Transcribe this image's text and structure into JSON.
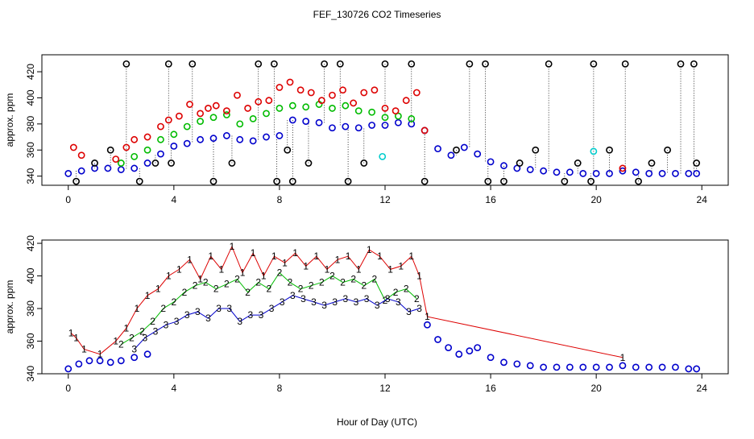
{
  "title": "FEF_130726  CO2 Timeseries",
  "xlabel": "Hour of Day (UTC)",
  "colors": {
    "black": "#000000",
    "red": "#dd0000",
    "green": "#00bb00",
    "blue": "#0000cc",
    "cyan": "#00cccc"
  },
  "chart_data": [
    {
      "type": "scatter",
      "ylabel": "approx. ppm",
      "xlim": [
        -1,
        25
      ],
      "ylim": [
        333,
        433
      ],
      "x_ticks": [
        0,
        4,
        8,
        12,
        16,
        20,
        24
      ],
      "y_ticks": [
        340,
        360,
        380,
        400,
        420
      ],
      "grid": false,
      "series": [
        {
          "color": "blue",
          "x": [
            0.0,
            0.5,
            1.0,
            1.5,
            2.0,
            2.5,
            3.0,
            3.5,
            4.0,
            4.5,
            5.0,
            5.5,
            6.0,
            6.5,
            7.0,
            7.5,
            8.0,
            8.5,
            9.0,
            9.5,
            10.0,
            10.5,
            11.0,
            11.5,
            12.0,
            12.5,
            13.0,
            13.5,
            14.0,
            14.5,
            15.0,
            15.5,
            16.0,
            16.5,
            17.0,
            17.5,
            18.0,
            18.5,
            19.0,
            19.5,
            20.0,
            20.5,
            21.0,
            21.5,
            22.0,
            22.5,
            23.0,
            23.5,
            23.8
          ],
          "y": [
            342,
            344,
            346,
            346,
            345,
            346,
            350,
            357,
            363,
            365,
            368,
            369,
            371,
            368,
            367,
            370,
            371,
            383,
            382,
            381,
            377,
            378,
            377,
            379,
            379,
            381,
            380,
            375,
            361,
            356,
            362,
            357,
            351,
            348,
            346,
            345,
            344,
            343,
            343,
            342,
            342,
            342,
            344,
            343,
            342,
            342,
            342,
            342,
            342
          ]
        },
        {
          "color": "green",
          "x": [
            2.0,
            2.5,
            3.0,
            3.5,
            4.0,
            4.5,
            5.0,
            5.5,
            6.0,
            6.5,
            7.0,
            7.5,
            8.0,
            8.5,
            9.0,
            9.5,
            10.0,
            10.5,
            11.0,
            11.5,
            12.0,
            12.5,
            13.0
          ],
          "y": [
            350,
            355,
            360,
            368,
            372,
            378,
            382,
            385,
            387,
            380,
            384,
            388,
            392,
            394,
            393,
            395,
            392,
            394,
            390,
            389,
            385,
            386,
            384
          ]
        },
        {
          "color": "red",
          "x": [
            0.2,
            0.5,
            1.8,
            2.2,
            2.5,
            3.0,
            3.5,
            3.8,
            4.2,
            4.6,
            5.0,
            5.3,
            5.6,
            6.0,
            6.4,
            6.8,
            7.2,
            7.6,
            8.0,
            8.4,
            8.8,
            9.2,
            9.6,
            10.0,
            10.4,
            10.8,
            11.2,
            11.6,
            12.0,
            12.4,
            12.8,
            13.2,
            13.5,
            21.0
          ],
          "y": [
            362,
            356,
            353,
            362,
            368,
            370,
            378,
            383,
            386,
            395,
            388,
            392,
            394,
            390,
            402,
            392,
            397,
            398,
            408,
            412,
            406,
            404,
            398,
            402,
            406,
            396,
            404,
            406,
            392,
            390,
            398,
            404,
            375,
            346
          ]
        },
        {
          "color": "cyan",
          "x": [
            11.9,
            19.9
          ],
          "y": [
            355,
            359
          ]
        },
        {
          "color": "black",
          "x": [
            0.3,
            1.0,
            1.6,
            2.2,
            2.7,
            3.3,
            3.8,
            3.9,
            4.7,
            5.5,
            6.2,
            7.2,
            7.8,
            7.9,
            8.3,
            8.5,
            9.1,
            9.7,
            10.3,
            10.6,
            11.2,
            12.0,
            13.0,
            13.5,
            14.7,
            15.2,
            15.8,
            15.9,
            16.5,
            17.1,
            17.7,
            18.2,
            18.8,
            19.3,
            19.8,
            19.9,
            20.5,
            21.1,
            21.6,
            22.1,
            22.7,
            23.2,
            23.7,
            23.8
          ],
          "y": [
            336,
            350,
            360,
            426,
            336,
            350,
            426,
            350,
            426,
            336,
            350,
            426,
            426,
            336,
            360,
            336,
            350,
            426,
            426,
            336,
            350,
            426,
            426,
            336,
            360,
            426,
            426,
            336,
            336,
            350,
            360,
            426,
            336,
            350,
            336,
            426,
            360,
            426,
            336,
            350,
            360,
            426,
            426,
            350
          ]
        }
      ]
    },
    {
      "type": "scatter",
      "ylabel": "approx. ppm",
      "xlim": [
        -1,
        25
      ],
      "ylim": [
        340,
        422
      ],
      "x_ticks": [
        0,
        4,
        8,
        12,
        16,
        20,
        24
      ],
      "y_ticks": [
        340,
        360,
        380,
        400,
        420
      ],
      "grid": false,
      "series": [
        {
          "name": "1",
          "color": "red",
          "x": [
            0.1,
            0.3,
            0.6,
            1.2,
            1.8,
            2.2,
            2.6,
            3.0,
            3.4,
            3.8,
            4.2,
            4.6,
            5.0,
            5.4,
            5.8,
            6.2,
            6.6,
            7.0,
            7.4,
            7.8,
            8.2,
            8.6,
            9.0,
            9.4,
            9.8,
            10.2,
            10.6,
            11.0,
            11.4,
            11.8,
            12.2,
            12.6,
            13.0,
            13.3,
            13.6,
            21.0
          ],
          "y": [
            365,
            362,
            355,
            352,
            360,
            368,
            380,
            388,
            392,
            400,
            404,
            410,
            398,
            412,
            404,
            418,
            402,
            414,
            400,
            412,
            408,
            414,
            406,
            412,
            404,
            410,
            412,
            404,
            416,
            412,
            404,
            406,
            412,
            400,
            375,
            350
          ]
        },
        {
          "name": "2",
          "color": "green",
          "x": [
            2.0,
            2.4,
            2.8,
            3.2,
            3.6,
            4.0,
            4.4,
            4.8,
            5.2,
            5.6,
            6.0,
            6.4,
            6.8,
            7.2,
            7.6,
            8.0,
            8.4,
            8.8,
            9.2,
            9.6,
            10.0,
            10.4,
            10.8,
            11.2,
            11.6,
            12.0,
            12.4,
            12.8,
            13.2
          ],
          "y": [
            358,
            362,
            366,
            372,
            380,
            384,
            390,
            394,
            396,
            392,
            395,
            398,
            390,
            396,
            392,
            402,
            396,
            392,
            394,
            396,
            400,
            396,
            398,
            394,
            398,
            385,
            390,
            392,
            386
          ]
        },
        {
          "name": "3",
          "color": "blue",
          "x": [
            2.5,
            2.9,
            3.3,
            3.7,
            4.1,
            4.5,
            4.9,
            5.3,
            5.7,
            6.1,
            6.5,
            6.9,
            7.3,
            7.7,
            8.1,
            8.5,
            8.9,
            9.3,
            9.7,
            10.1,
            10.5,
            10.9,
            11.3,
            11.7,
            12.1,
            12.5,
            12.9,
            13.3
          ],
          "y": [
            355,
            362,
            366,
            370,
            372,
            376,
            378,
            374,
            380,
            380,
            372,
            376,
            376,
            380,
            384,
            388,
            386,
            384,
            382,
            384,
            386,
            384,
            386,
            382,
            386,
            384,
            378,
            380
          ]
        },
        {
          "name": "o",
          "color": "blue",
          "x": [
            0.0,
            0.4,
            0.8,
            1.2,
            1.6,
            2.0,
            2.5,
            3.0,
            13.6,
            14.0,
            14.4,
            14.8,
            15.2,
            15.5,
            16.0,
            16.5,
            17.0,
            17.5,
            18.0,
            18.5,
            19.0,
            19.5,
            20.0,
            20.5,
            21.0,
            21.5,
            22.0,
            22.5,
            23.0,
            23.5,
            23.8
          ],
          "y": [
            343,
            346,
            348,
            348,
            347,
            348,
            350,
            352,
            370,
            361,
            356,
            352,
            354,
            356,
            350,
            347,
            346,
            345,
            344,
            344,
            344,
            344,
            344,
            344,
            345,
            344,
            344,
            344,
            344,
            343,
            343
          ]
        }
      ]
    }
  ]
}
